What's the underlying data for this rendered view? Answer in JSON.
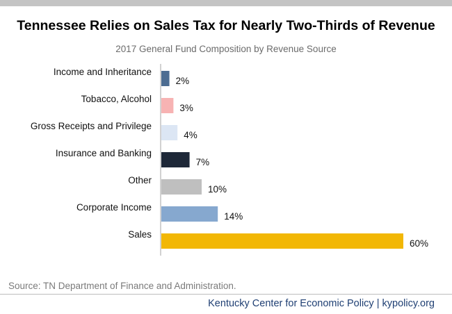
{
  "title": "Tennessee Relies on Sales Tax for Nearly Two-Thirds of Revenue",
  "subtitle": "2017 General Fund Composition by Revenue Source",
  "source": "Source: TN Department of Finance and Administration.",
  "footer": "Kentucky Center for Economic Policy | kypolicy.org",
  "chart_data": {
    "type": "bar",
    "orientation": "horizontal",
    "categories": [
      "Income and Inheritance",
      "Tobacco, Alcohol",
      "Gross Receipts and Privilege",
      "Insurance and Banking",
      "Other",
      "Corporate Income",
      "Sales"
    ],
    "values": [
      2,
      3,
      4,
      7,
      10,
      14,
      60
    ],
    "value_labels": [
      "2%",
      "3%",
      "4%",
      "7%",
      "10%",
      "14%",
      "60%"
    ],
    "colors": [
      "#4d6d92",
      "#f7b3b3",
      "#dce6f4",
      "#1e2838",
      "#bfbfbf",
      "#86a8cf",
      "#f2b705"
    ],
    "xlim": [
      0,
      60
    ],
    "grid": false,
    "legend": "none"
  }
}
